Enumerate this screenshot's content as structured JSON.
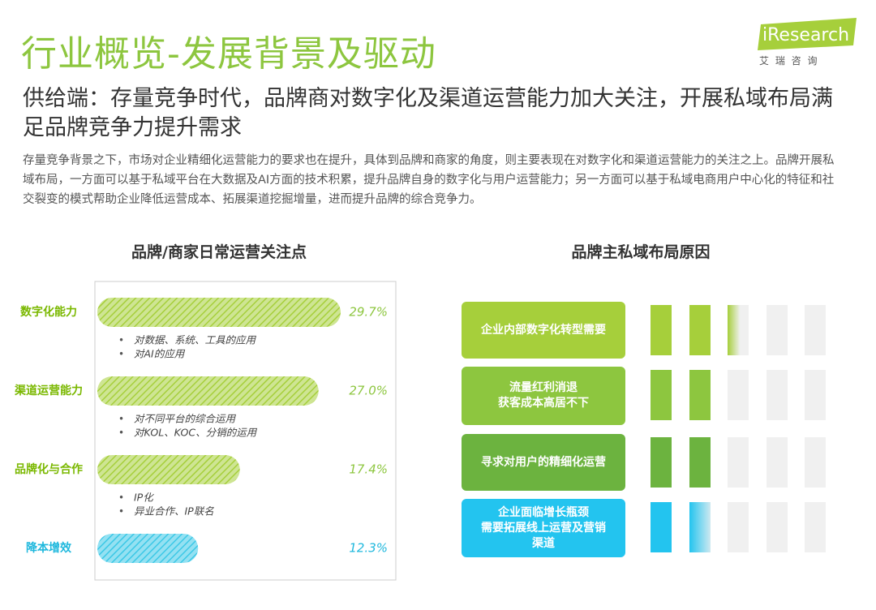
{
  "header": {
    "title": "行业概览-发展背景及驱动",
    "logo": "iResearch",
    "logo_sub": "艾 瑞 咨 询"
  },
  "subtitle": "供给端：存量竞争时代，品牌商对数字化及渠道运营能力加大关注，开展私域布局满足品牌竞争力提升需求",
  "paragraph": "存量竞争背景之下，市场对企业精细化运营能力的要求也在提升，具体到品牌和商家的角度，则主要表现在对数字化和渠道运营能力的关注之上。品牌开展私域布局，一方面可以基于私域平台在大数据及AI方面的技术积累，提升品牌自身的数字化与用户运营能力；另一方面可以基于私域电商用户中心化的特征和社交裂变的模式帮助企业降低运营成本、拓展渠道挖掘增量，进而提升品牌的综合竞争力。",
  "chart_data": [
    {
      "type": "bar",
      "title": "品牌/商家日常运营关注点",
      "categories": [
        "数字化能力",
        "渠道运营能力",
        "品牌化与合作",
        "降本增效"
      ],
      "values": [
        29.7,
        27.0,
        17.4,
        12.3
      ],
      "value_labels": [
        "29.7%",
        "27.0%",
        "17.4%",
        "12.3%"
      ],
      "colors": [
        "#a6cf3b",
        "#a6cf3b",
        "#a6cf3b",
        "#3cc8e6"
      ],
      "notes": [
        [
          "对数据、系统、工具的应用",
          "对AI的应用"
        ],
        [
          "对不同平台的综合运用",
          "对KOL、KOC、分销的运用"
        ],
        [
          "IP化",
          "异业合作、IP联名"
        ],
        []
      ]
    },
    {
      "type": "rating",
      "title": "品牌主私域布局原因",
      "categories": [
        "企业内部数字化转型需要",
        "流量红利消退\n获客成本高居不下",
        "寻求对用户的精细化运营",
        "企业面临增长瓶颈\n需要拓展线上运营及营销\n渠道"
      ],
      "values": [
        2.3,
        2,
        2,
        1.6
      ],
      "max": 5,
      "colors": [
        "#a6cf3b",
        "#8dc63f",
        "#6cb33f",
        "#23c4ef"
      ]
    }
  ]
}
